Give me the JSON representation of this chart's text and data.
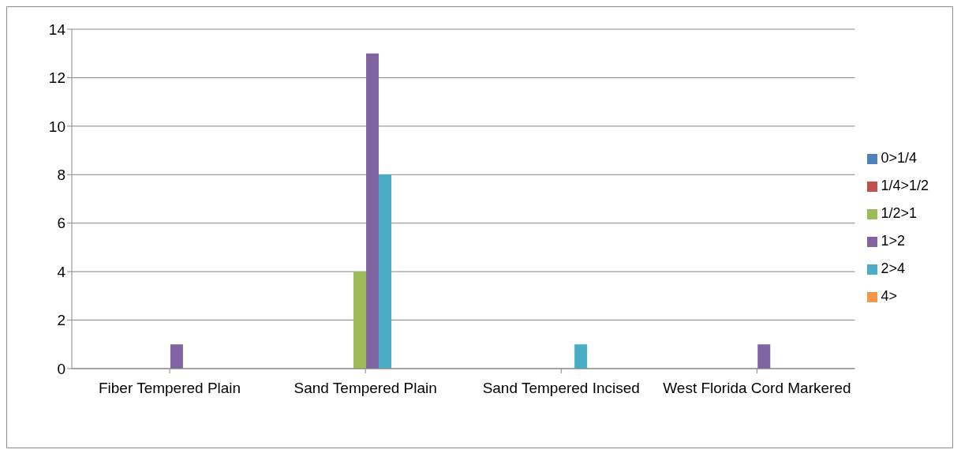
{
  "chart_data": {
    "type": "bar",
    "categories": [
      "Fiber Tempered Plain",
      "Sand Tempered Plain",
      "Sand Tempered Incised",
      "West Florida Cord Markered"
    ],
    "series": [
      {
        "name": "0>1/4",
        "color": "#4f81bd",
        "values": [
          0,
          0,
          0,
          0
        ]
      },
      {
        "name": "1/4>1/2",
        "color": "#c0504d",
        "values": [
          0,
          0,
          0,
          0
        ]
      },
      {
        "name": "1/2>1",
        "color": "#9bbb59",
        "values": [
          0,
          4,
          0,
          0
        ]
      },
      {
        "name": "1>2",
        "color": "#8064a2",
        "values": [
          1,
          13,
          0,
          1
        ]
      },
      {
        "name": "2>4",
        "color": "#4bacc6",
        "values": [
          0,
          8,
          1,
          0
        ]
      },
      {
        "name": "4>",
        "color": "#f79646",
        "values": [
          0,
          0,
          0,
          0
        ]
      }
    ],
    "ylim": [
      0,
      14
    ],
    "yticks": [
      0,
      2,
      4,
      6,
      8,
      10,
      12,
      14
    ],
    "grid": "y",
    "legend": "right"
  }
}
